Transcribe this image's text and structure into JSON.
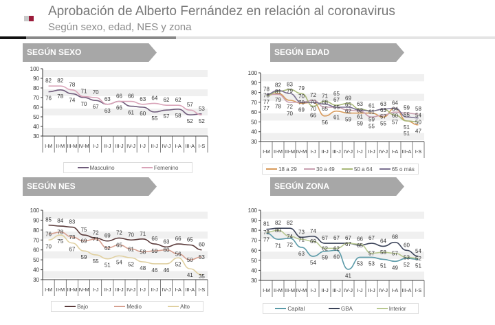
{
  "header": {
    "title": "Aprobación de Alberto Fernández en relación al coronavirus",
    "subtitle": "Según sexo, edad, NES y zona"
  },
  "colors": {
    "logo_light": "#c8c8c8",
    "logo_dark": "#9b1b3a",
    "banner": "#a7a7a7"
  },
  "chart_data": [
    {
      "type": "line",
      "title": "SEGÚN SEXO",
      "categories": [
        "I-M",
        "II-M",
        "III-M",
        "IV-M",
        "I-J",
        "II-J",
        "III-J",
        "IV-J",
        "I-J",
        "II-J",
        "IV-J",
        "I-A",
        "III-A",
        "I-S"
      ],
      "ylim": [
        30,
        100
      ],
      "yticks": [
        "30",
        "40",
        "50",
        "60",
        "70",
        "80",
        "90",
        "100"
      ],
      "legend": "bottom",
      "series": [
        {
          "name": "Masculino",
          "color": "#6e5a7a",
          "label_pos": "below",
          "values": [
            76,
            78,
            74,
            70,
            67,
            63,
            66,
            61,
            60,
            55,
            57,
            58,
            52,
            53
          ]
        },
        {
          "name": "Femenino",
          "color": "#d9a3b8",
          "label_pos": "above",
          "values": [
            82,
            82,
            78,
            71,
            70,
            63,
            66,
            66,
            63,
            64,
            62,
            62,
            57,
            52
          ]
        }
      ]
    },
    {
      "type": "line",
      "title": "SEGÚN EDAD",
      "categories": [
        "I-M",
        "II-M",
        "III-M",
        "IV-M",
        "I-J",
        "II-J",
        "III-J",
        "IV-J",
        "I-J",
        "II-J",
        "IV-J",
        "I-A",
        "III-A",
        "I-S"
      ],
      "ylim": [
        30,
        100
      ],
      "yticks": [
        "30",
        "40",
        "50",
        "60",
        "70",
        "80",
        "90",
        "100"
      ],
      "legend": "bottom",
      "series": [
        {
          "name": "18 a 29",
          "color": "#d89a5a",
          "label_pos": "below",
          "values": [
            77,
            79,
            72,
            69,
            70,
            56,
            61,
            59,
            59,
            59,
            55,
            64,
            51,
            47
          ]
        },
        {
          "name": "30 a 49",
          "color": "#c9a0b0",
          "label_pos": "right",
          "values": [
            78,
            78,
            70,
            70,
            72,
            65,
            65,
            62,
            61,
            55,
            57,
            60,
            59,
            58
          ]
        },
        {
          "name": "50 a 64",
          "color": "#a8b878",
          "label_pos": "above",
          "values": [
            77,
            81,
            83,
            79,
            66,
            71,
            67,
            69,
            63,
            61,
            63,
            57,
            51,
            50
          ]
        },
        {
          "name": "65 o más",
          "color": "#7a7090",
          "label_pos": "above",
          "values": [
            78,
            82,
            79,
            70,
            70,
            68,
            65,
            65,
            62,
            61,
            63,
            64,
            55,
            54
          ]
        }
      ]
    },
    {
      "type": "line",
      "title": "SEGÚN NES",
      "categories": [
        "I-M",
        "II-M",
        "III-M",
        "IV-M",
        "I-J",
        "II-J",
        "III-J",
        "IV-J",
        "I-J",
        "II-J",
        "IV-J",
        "I-A",
        "III-A",
        "I-S"
      ],
      "ylim": [
        30,
        100
      ],
      "yticks": [
        "30",
        "40",
        "50",
        "60",
        "70",
        "80",
        "90",
        "100"
      ],
      "legend": "bottom",
      "series": [
        {
          "name": "Bajo",
          "color": "#5a3a3a",
          "label_pos": "above",
          "values": [
            85,
            84,
            83,
            75,
            72,
            69,
            72,
            70,
            71,
            66,
            63,
            66,
            65,
            60
          ]
        },
        {
          "name": "Medio",
          "color": "#d6a090",
          "label_pos": "right",
          "values": [
            76,
            78,
            73,
            69,
            71,
            62,
            65,
            61,
            58,
            59,
            60,
            56,
            50,
            53
          ]
        },
        {
          "name": "Alto",
          "color": "#e0d0a0",
          "label_pos": "below",
          "values": [
            70,
            75,
            67,
            59,
            55,
            51,
            54,
            52,
            48,
            46,
            46,
            52,
            41,
            35
          ]
        }
      ]
    },
    {
      "type": "line",
      "title": "SEGÚN ZONA",
      "categories": [
        "I-M",
        "II-M",
        "III-M",
        "IV-M",
        "I-J",
        "II-J",
        "III-J",
        "IV-J",
        "I-J",
        "II-J",
        "IV-J",
        "I-A",
        "III-A",
        "I-S"
      ],
      "ylim": [
        30,
        100
      ],
      "yticks": [
        "30",
        "40",
        "50",
        "60",
        "70",
        "80",
        "90",
        "100"
      ],
      "legend": "bottom",
      "series": [
        {
          "name": "Capital",
          "color": "#5a9aa8",
          "label_pos": "below",
          "values": [
            77,
            71,
            72,
            63,
            54,
            59,
            60,
            41,
            53,
            53,
            51,
            49,
            52,
            51
          ]
        },
        {
          "name": "GBA",
          "color": "#3a4258",
          "label_pos": "above",
          "values": [
            81,
            82,
            82,
            73,
            74,
            67,
            67,
            67,
            65,
            67,
            64,
            68,
            60,
            54
          ]
        },
        {
          "name": "Interior",
          "color": "#b8c890",
          "label_pos": "right",
          "values": [
            78,
            80,
            74,
            71,
            69,
            62,
            62,
            67,
            66,
            57,
            58,
            57,
            53,
            52
          ]
        }
      ]
    }
  ]
}
